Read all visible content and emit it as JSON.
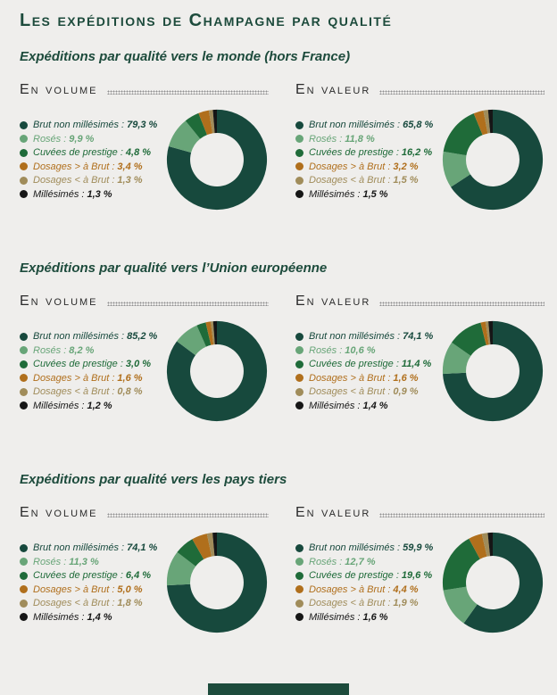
{
  "page": {
    "title": "Les expéditions de Champagne par qualité",
    "background": "#efeeec",
    "accent_green": "#1d4b3c"
  },
  "palette": {
    "categories": [
      {
        "name": "Brut non millésimés",
        "color": "#17493d"
      },
      {
        "name": "Rosés",
        "color": "#68a578"
      },
      {
        "name": "Cuvées de prestige",
        "color": "#1f6b39"
      },
      {
        "name": "Dosages > à Brut",
        "color": "#b06f1c"
      },
      {
        "name": "Dosages < à Brut",
        "color": "#a08c5a"
      },
      {
        "name": "Millésimés",
        "color": "#161616"
      }
    ]
  },
  "sections": [
    {
      "heading": "Expéditions par qualité vers le monde (hors France)"
    },
    {
      "heading": "Expéditions par qualité vers l’Union européenne"
    },
    {
      "heading": "Expéditions par qualité vers les pays tiers"
    }
  ],
  "chart_data": [
    {
      "type": "pie",
      "subtype": "donut",
      "section": "Expéditions par qualité vers le monde (hors France)",
      "title": "En volume",
      "categories": [
        "Brut non millésimés",
        "Rosés",
        "Cuvées de prestige",
        "Dosages > à Brut",
        "Dosages < à Brut",
        "Millésimés"
      ],
      "values": [
        79.3,
        9.9,
        4.8,
        3.4,
        1.3,
        1.3
      ],
      "legend": [
        {
          "label": "Brut non millésimés :",
          "value": "79,3 %"
        },
        {
          "label": "Rosés :",
          "value": "9,9 %"
        },
        {
          "label": "Cuvées de prestige :",
          "value": "4,8 %"
        },
        {
          "label": "Dosages > à Brut :",
          "value": "3,4 %"
        },
        {
          "label": "Dosages < à Brut :",
          "value": "1,3 %"
        },
        {
          "label": "Millésimés :",
          "value": "1,3 %"
        }
      ]
    },
    {
      "type": "pie",
      "subtype": "donut",
      "section": "Expéditions par qualité vers le monde (hors France)",
      "title": "En valeur",
      "categories": [
        "Brut non millésimés",
        "Rosés",
        "Cuvées de prestige",
        "Dosages > à Brut",
        "Dosages < à Brut",
        "Millésimés"
      ],
      "values": [
        65.8,
        11.8,
        16.2,
        3.2,
        1.5,
        1.5
      ],
      "legend": [
        {
          "label": "Brut non millésimés :",
          "value": "65,8 %"
        },
        {
          "label": "Rosés :",
          "value": "11,8 %"
        },
        {
          "label": "Cuvées de prestige :",
          "value": "16,2 %"
        },
        {
          "label": "Dosages > à Brut :",
          "value": "3,2 %"
        },
        {
          "label": "Dosages < à Brut :",
          "value": "1,5 %"
        },
        {
          "label": "Millésimés :",
          "value": "1,5 %"
        }
      ]
    },
    {
      "type": "pie",
      "subtype": "donut",
      "section": "Expéditions par qualité vers l’Union européenne",
      "title": "En volume",
      "categories": [
        "Brut non millésimés",
        "Rosés",
        "Cuvées de prestige",
        "Dosages > à Brut",
        "Dosages < à Brut",
        "Millésimés"
      ],
      "values": [
        85.2,
        8.2,
        3.0,
        1.6,
        0.8,
        1.2
      ],
      "legend": [
        {
          "label": "Brut non millésimés :",
          "value": "85,2 %"
        },
        {
          "label": "Rosés :",
          "value": "8,2 %"
        },
        {
          "label": "Cuvées de prestige :",
          "value": "3,0 %"
        },
        {
          "label": "Dosages > à Brut :",
          "value": "1,6 %"
        },
        {
          "label": "Dosages < à Brut :",
          "value": "0,8 %"
        },
        {
          "label": "Millésimés :",
          "value": "1,2 %"
        }
      ]
    },
    {
      "type": "pie",
      "subtype": "donut",
      "section": "Expéditions par qualité vers l’Union européenne",
      "title": "En valeur",
      "categories": [
        "Brut non millésimés",
        "Rosés",
        "Cuvées de prestige",
        "Dosages > à Brut",
        "Dosages < à Brut",
        "Millésimés"
      ],
      "values": [
        74.1,
        10.6,
        11.4,
        1.6,
        0.9,
        1.4
      ],
      "legend": [
        {
          "label": "Brut non millésimés :",
          "value": "74,1 %"
        },
        {
          "label": "Rosés :",
          "value": "10,6 %"
        },
        {
          "label": "Cuvées de prestige :",
          "value": "11,4 %"
        },
        {
          "label": "Dosages > à Brut :",
          "value": "1,6 %"
        },
        {
          "label": "Dosages < à Brut :",
          "value": "0,9 %"
        },
        {
          "label": "Millésimés :",
          "value": "1,4 %"
        }
      ]
    },
    {
      "type": "pie",
      "subtype": "donut",
      "section": "Expéditions par qualité vers les pays tiers",
      "title": "En volume",
      "categories": [
        "Brut non millésimés",
        "Rosés",
        "Cuvées de prestige",
        "Dosages > à Brut",
        "Dosages < à Brut",
        "Millésimés"
      ],
      "values": [
        74.1,
        11.3,
        6.4,
        5.0,
        1.8,
        1.4
      ],
      "legend": [
        {
          "label": "Brut non millésimés :",
          "value": "74,1 %"
        },
        {
          "label": "Rosés :",
          "value": "11,3 %"
        },
        {
          "label": "Cuvées de prestige :",
          "value": "6,4 %"
        },
        {
          "label": "Dosages > à Brut :",
          "value": "5,0 %"
        },
        {
          "label": "Dosages < à Brut :",
          "value": "1,8 %"
        },
        {
          "label": "Millésimés :",
          "value": "1,4 %"
        }
      ]
    },
    {
      "type": "pie",
      "subtype": "donut",
      "section": "Expéditions par qualité vers les pays tiers",
      "title": "En valeur",
      "categories": [
        "Brut non millésimés",
        "Rosés",
        "Cuvées de prestige",
        "Dosages > à Brut",
        "Dosages < à Brut",
        "Millésimés"
      ],
      "values": [
        59.9,
        12.7,
        19.6,
        4.4,
        1.9,
        1.6
      ],
      "legend": [
        {
          "label": "Brut non millésimés :",
          "value": "59,9 %"
        },
        {
          "label": "Rosés :",
          "value": "12,7 %"
        },
        {
          "label": "Cuvées de prestige :",
          "value": "19,6 %"
        },
        {
          "label": "Dosages > à Brut :",
          "value": "4,4 %"
        },
        {
          "label": "Dosages < à Brut :",
          "value": "1,9 %"
        },
        {
          "label": "Millésimés :",
          "value": "1,6 %"
        }
      ]
    }
  ]
}
